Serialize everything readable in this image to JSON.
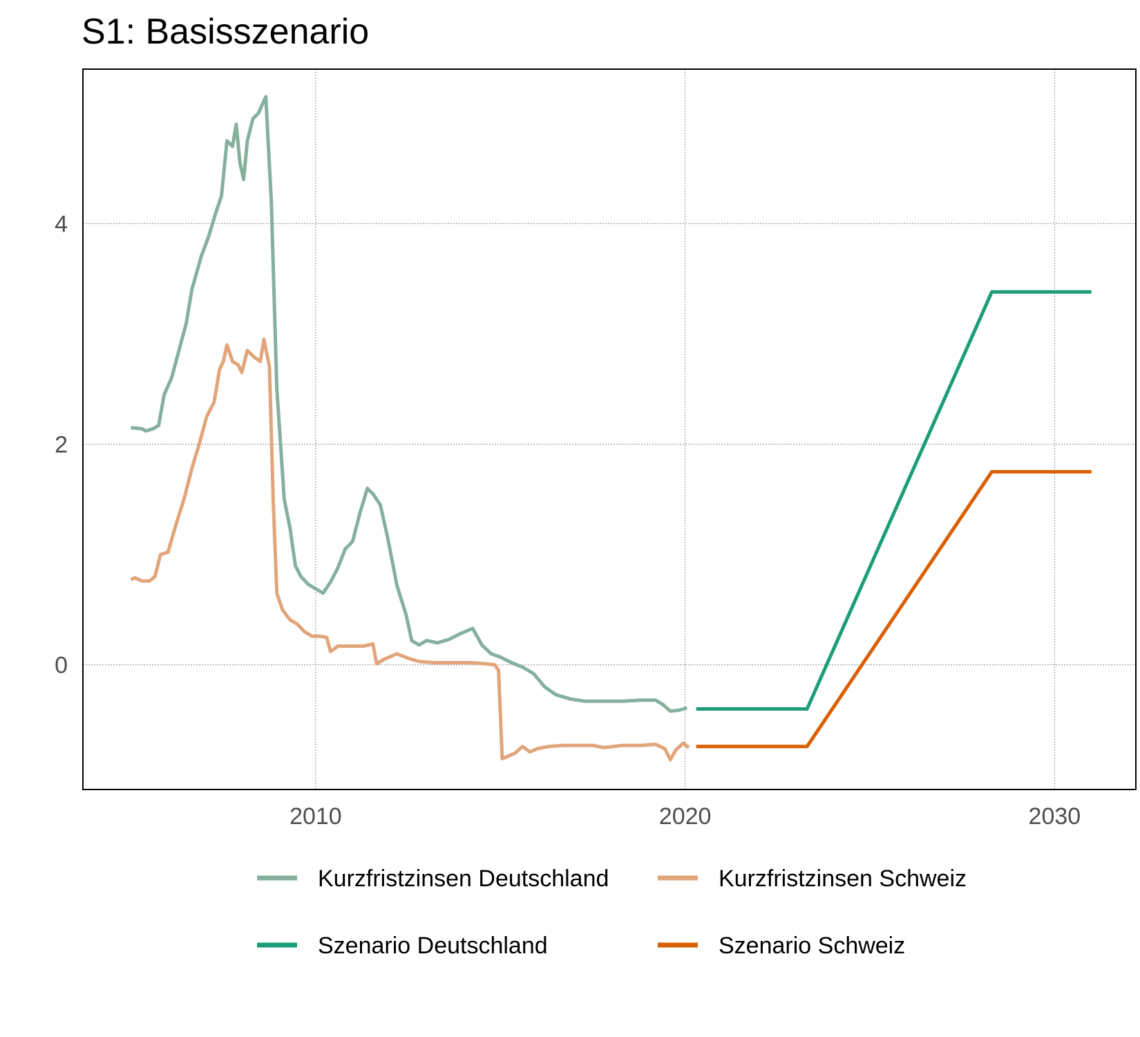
{
  "chart_data": {
    "type": "line",
    "title": "S1: Basisszenario",
    "xlabel": "",
    "ylabel": "",
    "xlim": [
      2003.7,
      2032.2
    ],
    "ylim": [
      -1.13,
      5.4
    ],
    "x_ticks": [
      2010,
      2020,
      2030
    ],
    "x_tick_labels": [
      "2010",
      "2020",
      "2030"
    ],
    "y_ticks": [
      0,
      2,
      4
    ],
    "y_tick_labels": [
      "0",
      "2",
      "4"
    ],
    "grid": true,
    "legend_position": "bottom",
    "series": [
      {
        "name": "Kurzfristzinsen Deutschland",
        "color": "#86b09e",
        "points": [
          [
            2005.0,
            2.15
          ],
          [
            2005.3,
            2.14
          ],
          [
            2005.4,
            2.12
          ],
          [
            2005.6,
            2.14
          ],
          [
            2005.75,
            2.17
          ],
          [
            2005.9,
            2.45
          ],
          [
            2006.1,
            2.6
          ],
          [
            2006.3,
            2.85
          ],
          [
            2006.5,
            3.1
          ],
          [
            2006.65,
            3.4
          ],
          [
            2006.9,
            3.7
          ],
          [
            2007.1,
            3.88
          ],
          [
            2007.3,
            4.1
          ],
          [
            2007.45,
            4.25
          ],
          [
            2007.6,
            4.75
          ],
          [
            2007.75,
            4.7
          ],
          [
            2007.85,
            4.9
          ],
          [
            2007.95,
            4.55
          ],
          [
            2008.05,
            4.4
          ],
          [
            2008.15,
            4.75
          ],
          [
            2008.3,
            4.95
          ],
          [
            2008.45,
            5.0
          ],
          [
            2008.65,
            5.15
          ],
          [
            2008.8,
            4.2
          ],
          [
            2008.95,
            2.5
          ],
          [
            2009.15,
            1.5
          ],
          [
            2009.3,
            1.25
          ],
          [
            2009.45,
            0.9
          ],
          [
            2009.6,
            0.8
          ],
          [
            2009.8,
            0.73
          ],
          [
            2010.0,
            0.69
          ],
          [
            2010.2,
            0.65
          ],
          [
            2010.4,
            0.75
          ],
          [
            2010.6,
            0.88
          ],
          [
            2010.8,
            1.05
          ],
          [
            2011.0,
            1.12
          ],
          [
            2011.2,
            1.38
          ],
          [
            2011.4,
            1.6
          ],
          [
            2011.55,
            1.55
          ],
          [
            2011.75,
            1.45
          ],
          [
            2011.95,
            1.15
          ],
          [
            2012.2,
            0.72
          ],
          [
            2012.45,
            0.45
          ],
          [
            2012.6,
            0.22
          ],
          [
            2012.8,
            0.18
          ],
          [
            2013.0,
            0.22
          ],
          [
            2013.3,
            0.2
          ],
          [
            2013.6,
            0.23
          ],
          [
            2013.9,
            0.28
          ],
          [
            2014.25,
            0.33
          ],
          [
            2014.5,
            0.18
          ],
          [
            2014.75,
            0.1
          ],
          [
            2015.0,
            0.07
          ],
          [
            2015.3,
            0.02
          ],
          [
            2015.6,
            -0.02
          ],
          [
            2015.9,
            -0.08
          ],
          [
            2016.2,
            -0.2
          ],
          [
            2016.5,
            -0.27
          ],
          [
            2016.9,
            -0.31
          ],
          [
            2017.3,
            -0.33
          ],
          [
            2017.8,
            -0.33
          ],
          [
            2018.3,
            -0.33
          ],
          [
            2018.8,
            -0.32
          ],
          [
            2019.2,
            -0.32
          ],
          [
            2019.4,
            -0.36
          ],
          [
            2019.6,
            -0.42
          ],
          [
            2019.85,
            -0.41
          ],
          [
            2020.05,
            -0.39
          ]
        ]
      },
      {
        "name": "Kurzfristzinsen Schweiz",
        "color": "#e2a57b",
        "points": [
          [
            2005.0,
            0.77
          ],
          [
            2005.1,
            0.79
          ],
          [
            2005.3,
            0.76
          ],
          [
            2005.5,
            0.76
          ],
          [
            2005.65,
            0.8
          ],
          [
            2005.8,
            1.0
          ],
          [
            2006.0,
            1.02
          ],
          [
            2006.2,
            1.25
          ],
          [
            2006.45,
            1.52
          ],
          [
            2006.65,
            1.78
          ],
          [
            2006.85,
            2.0
          ],
          [
            2007.05,
            2.25
          ],
          [
            2007.25,
            2.38
          ],
          [
            2007.4,
            2.68
          ],
          [
            2007.5,
            2.75
          ],
          [
            2007.6,
            2.9
          ],
          [
            2007.75,
            2.75
          ],
          [
            2007.9,
            2.72
          ],
          [
            2008.0,
            2.65
          ],
          [
            2008.15,
            2.85
          ],
          [
            2008.3,
            2.8
          ],
          [
            2008.5,
            2.75
          ],
          [
            2008.6,
            2.95
          ],
          [
            2008.75,
            2.7
          ],
          [
            2008.85,
            1.5
          ],
          [
            2008.95,
            0.65
          ],
          [
            2009.1,
            0.5
          ],
          [
            2009.3,
            0.41
          ],
          [
            2009.5,
            0.37
          ],
          [
            2009.7,
            0.3
          ],
          [
            2009.9,
            0.26
          ],
          [
            2010.1,
            0.26
          ],
          [
            2010.3,
            0.25
          ],
          [
            2010.4,
            0.12
          ],
          [
            2010.6,
            0.17
          ],
          [
            2010.9,
            0.17
          ],
          [
            2011.3,
            0.17
          ],
          [
            2011.55,
            0.19
          ],
          [
            2011.65,
            0.01
          ],
          [
            2011.85,
            0.05
          ],
          [
            2012.2,
            0.1
          ],
          [
            2012.5,
            0.06
          ],
          [
            2012.8,
            0.03
          ],
          [
            2013.2,
            0.02
          ],
          [
            2013.7,
            0.02
          ],
          [
            2014.2,
            0.02
          ],
          [
            2014.6,
            0.01
          ],
          [
            2014.85,
            0.0
          ],
          [
            2014.95,
            -0.05
          ],
          [
            2015.05,
            -0.85
          ],
          [
            2015.2,
            -0.83
          ],
          [
            2015.4,
            -0.8
          ],
          [
            2015.6,
            -0.74
          ],
          [
            2015.8,
            -0.79
          ],
          [
            2016.0,
            -0.76
          ],
          [
            2016.3,
            -0.74
          ],
          [
            2016.7,
            -0.73
          ],
          [
            2017.1,
            -0.73
          ],
          [
            2017.5,
            -0.73
          ],
          [
            2017.8,
            -0.75
          ],
          [
            2018.3,
            -0.73
          ],
          [
            2018.8,
            -0.73
          ],
          [
            2019.2,
            -0.72
          ],
          [
            2019.45,
            -0.76
          ],
          [
            2019.6,
            -0.86
          ],
          [
            2019.75,
            -0.77
          ],
          [
            2019.95,
            -0.71
          ],
          [
            2020.1,
            -0.75
          ]
        ]
      },
      {
        "name": "Szenario Deutschland",
        "color": "#1b9e77",
        "points": [
          [
            2020.3,
            -0.4
          ],
          [
            2023.3,
            -0.4
          ],
          [
            2028.3,
            3.38
          ],
          [
            2031.0,
            3.38
          ]
        ]
      },
      {
        "name": "Szenario Schweiz",
        "color": "#d95f02",
        "points": [
          [
            2020.3,
            -0.74
          ],
          [
            2023.3,
            -0.74
          ],
          [
            2028.3,
            1.75
          ],
          [
            2031.0,
            1.75
          ]
        ]
      }
    ]
  }
}
